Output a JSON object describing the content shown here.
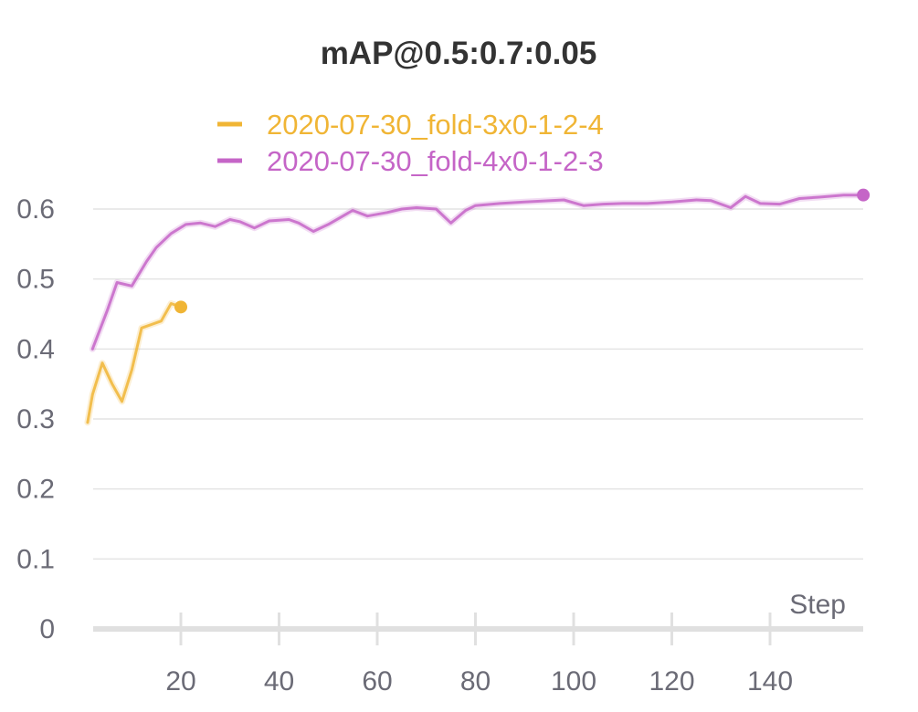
{
  "chart_data": {
    "type": "line",
    "title": "mAP@0.5:0.7:0.05",
    "xlabel": "Step",
    "ylabel": "",
    "xlim": [
      1,
      159
    ],
    "ylim": [
      0,
      0.65
    ],
    "xticks": [
      20,
      40,
      60,
      80,
      100,
      120,
      140
    ],
    "yticks": [
      0,
      0.1,
      0.2,
      0.3,
      0.4,
      0.5,
      0.6
    ],
    "grid": true,
    "legend_position": "top",
    "series": [
      {
        "name": "2020-07-30_fold-3x0-1-2-4",
        "color": "#f0b535",
        "x": [
          1,
          2,
          4,
          6,
          8,
          10,
          12,
          14,
          16,
          18,
          20
        ],
        "y": [
          0.295,
          0.335,
          0.38,
          0.35,
          0.325,
          0.37,
          0.43,
          0.435,
          0.44,
          0.465,
          0.46
        ]
      },
      {
        "name": "2020-07-30_fold-4x0-1-2-3",
        "color": "#c565c7",
        "x": [
          2,
          5,
          7,
          10,
          13,
          15,
          18,
          21,
          24,
          27,
          30,
          32,
          35,
          38,
          42,
          44,
          47,
          50,
          55,
          58,
          62,
          65,
          68,
          72,
          75,
          78,
          80,
          85,
          90,
          98,
          102,
          106,
          110,
          115,
          120,
          125,
          128,
          132,
          135,
          138,
          142,
          146,
          150,
          155,
          159
        ],
        "y": [
          0.4,
          0.455,
          0.495,
          0.49,
          0.525,
          0.545,
          0.565,
          0.578,
          0.58,
          0.575,
          0.585,
          0.582,
          0.573,
          0.583,
          0.585,
          0.58,
          0.568,
          0.578,
          0.598,
          0.59,
          0.595,
          0.6,
          0.602,
          0.6,
          0.58,
          0.598,
          0.605,
          0.608,
          0.61,
          0.613,
          0.605,
          0.607,
          0.608,
          0.608,
          0.61,
          0.613,
          0.612,
          0.602,
          0.618,
          0.608,
          0.607,
          0.615,
          0.617,
          0.62,
          0.62
        ]
      }
    ]
  }
}
